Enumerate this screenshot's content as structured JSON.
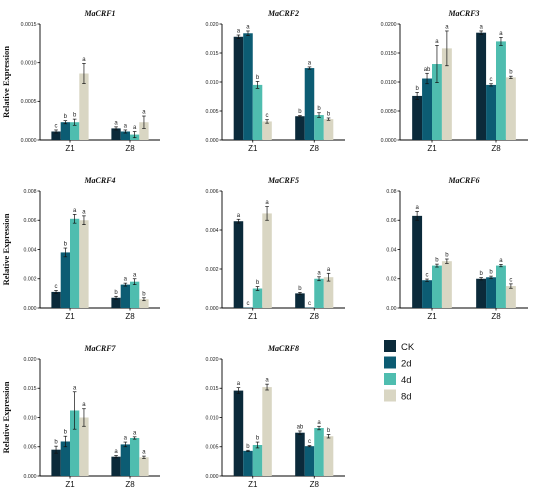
{
  "colors": {
    "CK": "#0b2a3a",
    "2d": "#0c5c73",
    "4d": "#4fbdaf",
    "8d": "#d9d6c3"
  },
  "legend": [
    "CK",
    "2d",
    "4d",
    "8d"
  ],
  "chart_data": [
    {
      "type": "bar",
      "title": "MaCRF1",
      "ylabel": "Relative Expression",
      "categories": [
        "Z1",
        "Z8"
      ],
      "ylim": [
        0,
        0.0015
      ],
      "yticks": [
        "0.0000",
        "0.0005",
        "0.0010",
        "0.0015"
      ],
      "series": [
        {
          "name": "CK",
          "values": [
            0.00011,
            0.00015
          ],
          "errors": [
            2e-05,
            2e-05
          ],
          "letters": [
            "c",
            "a"
          ]
        },
        {
          "name": "2d",
          "values": [
            0.00023,
            0.00011
          ],
          "errors": [
            2e-05,
            2e-05
          ],
          "letters": [
            "b",
            "a"
          ]
        },
        {
          "name": "4d",
          "values": [
            0.00023,
            7e-05
          ],
          "errors": [
            4e-05,
            4e-05
          ],
          "letters": [
            "b",
            "a"
          ]
        },
        {
          "name": "8d",
          "values": [
            0.00086,
            0.00023
          ],
          "errors": [
            0.00013,
            8e-05
          ],
          "letters": [
            "a",
            "a"
          ]
        }
      ]
    },
    {
      "type": "bar",
      "title": "MaCRF2",
      "ylabel": "",
      "categories": [
        "Z1",
        "Z8"
      ],
      "ylim": [
        0,
        0.02
      ],
      "yticks": [
        "0.000",
        "0.005",
        "0.010",
        "0.015",
        "0.020"
      ],
      "series": [
        {
          "name": "CK",
          "values": [
            0.0178,
            0.0041
          ],
          "errors": [
            0.0003,
            0.0001
          ],
          "letters": [
            "a",
            "b"
          ]
        },
        {
          "name": "2d",
          "values": [
            0.0184,
            0.0124
          ],
          "errors": [
            0.0004,
            0.0002
          ],
          "letters": [
            "a",
            "a"
          ]
        },
        {
          "name": "4d",
          "values": [
            0.0095,
            0.0043
          ],
          "errors": [
            0.0006,
            0.0004
          ],
          "letters": [
            "b",
            "b"
          ]
        },
        {
          "name": "8d",
          "values": [
            0.0032,
            0.0036
          ],
          "errors": [
            0.0003,
            0.0002
          ],
          "letters": [
            "c",
            "b"
          ]
        }
      ]
    },
    {
      "type": "bar",
      "title": "MaCRF3",
      "ylabel": "",
      "categories": [
        "Z1",
        "Z8"
      ],
      "ylim": [
        0,
        0.02
      ],
      "yticks": [
        "0.0000",
        "0.0050",
        "0.0100",
        "0.0150",
        "0.0200"
      ],
      "series": [
        {
          "name": "CK",
          "values": [
            0.0076,
            0.0185
          ],
          "errors": [
            0.0006,
            0.0003
          ],
          "letters": [
            "b",
            "a"
          ]
        },
        {
          "name": "2d",
          "values": [
            0.0106,
            0.0095
          ],
          "errors": [
            0.0009,
            0.0002
          ],
          "letters": [
            "ab",
            "c"
          ]
        },
        {
          "name": "4d",
          "values": [
            0.0131,
            0.017
          ],
          "errors": [
            0.0032,
            0.0007
          ],
          "letters": [
            "a",
            "a"
          ]
        },
        {
          "name": "8d",
          "values": [
            0.0158,
            0.0108
          ],
          "errors": [
            0.003,
            0.0002
          ],
          "letters": [
            "a",
            "b"
          ]
        }
      ]
    },
    {
      "type": "bar",
      "title": "MaCRF4",
      "ylabel": "Relative Expression",
      "categories": [
        "Z1",
        "Z8"
      ],
      "ylim": [
        0,
        0.008
      ],
      "yticks": [
        "0.000",
        "0.002",
        "0.004",
        "0.006",
        "0.008"
      ],
      "series": [
        {
          "name": "CK",
          "values": [
            0.0011,
            0.0007
          ],
          "errors": [
            0.0001,
            0.0001
          ],
          "letters": [
            "c",
            "b"
          ]
        },
        {
          "name": "2d",
          "values": [
            0.0038,
            0.0016
          ],
          "errors": [
            0.0003,
            0.0001
          ],
          "letters": [
            "b",
            "a"
          ]
        },
        {
          "name": "4d",
          "values": [
            0.0061,
            0.0018
          ],
          "errors": [
            0.0003,
            0.0002
          ],
          "letters": [
            "a",
            "a"
          ]
        },
        {
          "name": "8d",
          "values": [
            0.006,
            0.0006
          ],
          "errors": [
            0.0003,
            0.0001
          ],
          "letters": [
            "a",
            "b"
          ]
        }
      ]
    },
    {
      "type": "bar",
      "title": "MaCRF5",
      "ylabel": "",
      "categories": [
        "Z1",
        "Z8"
      ],
      "ylim": [
        0,
        0.006
      ],
      "yticks": [
        "0.000",
        "0.002",
        "0.004",
        "0.006"
      ],
      "series": [
        {
          "name": "CK",
          "values": [
            0.00445,
            0.00075
          ],
          "errors": [
            0.0001,
            5e-05
          ],
          "letters": [
            "a",
            "b"
          ]
        },
        {
          "name": "2d",
          "values": [
            2e-05,
            2e-05
          ],
          "errors": [
            0,
            0
          ],
          "letters": [
            "c",
            "c"
          ]
        },
        {
          "name": "4d",
          "values": [
            0.001,
            0.0015
          ],
          "errors": [
            0.0001,
            0.0001
          ],
          "letters": [
            "b",
            "a"
          ]
        },
        {
          "name": "8d",
          "values": [
            0.00485,
            0.00158
          ],
          "errors": [
            0.00035,
            0.0002
          ],
          "letters": [
            "a",
            "a"
          ]
        }
      ]
    },
    {
      "type": "bar",
      "title": "MaCRF6",
      "ylabel": "",
      "categories": [
        "Z1",
        "Z8"
      ],
      "ylim": [
        0,
        0.08
      ],
      "yticks": [
        "0.00",
        "0.02",
        "0.04",
        "0.06",
        "0.08"
      ],
      "series": [
        {
          "name": "CK",
          "values": [
            0.063,
            0.02
          ],
          "errors": [
            0.003,
            0.0008
          ],
          "letters": [
            "a",
            "b"
          ]
        },
        {
          "name": "2d",
          "values": [
            0.019,
            0.021
          ],
          "errors": [
            0.0008,
            0.0008
          ],
          "letters": [
            "c",
            "b"
          ]
        },
        {
          "name": "4d",
          "values": [
            0.029,
            0.029
          ],
          "errors": [
            0.001,
            0.0008
          ],
          "letters": [
            "b",
            "a"
          ]
        },
        {
          "name": "8d",
          "values": [
            0.032,
            0.015
          ],
          "errors": [
            0.0015,
            0.0015
          ],
          "letters": [
            "b",
            "c"
          ]
        }
      ]
    },
    {
      "type": "bar",
      "title": "MaCRF7",
      "ylabel": "Relative Expression",
      "categories": [
        "Z1",
        "Z8"
      ],
      "ylim": [
        0,
        0.02
      ],
      "yticks": [
        "0.000",
        "0.005",
        "0.010",
        "0.015",
        "0.020"
      ],
      "series": [
        {
          "name": "CK",
          "values": [
            0.0045,
            0.0033
          ],
          "errors": [
            0.0006,
            0.0002
          ],
          "letters": [
            "b",
            "a"
          ]
        },
        {
          "name": "2d",
          "values": [
            0.0059,
            0.0054
          ],
          "errors": [
            0.0009,
            0.0004
          ],
          "letters": [
            "b",
            "a"
          ]
        },
        {
          "name": "4d",
          "values": [
            0.0112,
            0.0065
          ],
          "errors": [
            0.0032,
            0.0002
          ],
          "letters": [
            "a",
            "a"
          ]
        },
        {
          "name": "8d",
          "values": [
            0.01,
            0.0032
          ],
          "errors": [
            0.0015,
            0.0002
          ],
          "letters": [
            "a",
            "a"
          ]
        }
      ]
    },
    {
      "type": "bar",
      "title": "MaCRF8",
      "ylabel": "",
      "categories": [
        "Z1",
        "Z8"
      ],
      "ylim": [
        0,
        0.02
      ],
      "yticks": [
        "0.000",
        "0.005",
        "0.010",
        "0.015",
        "0.020"
      ],
      "series": [
        {
          "name": "CK",
          "values": [
            0.0146,
            0.0074
          ],
          "errors": [
            0.0005,
            0.0003
          ],
          "letters": [
            "a",
            "ab"
          ]
        },
        {
          "name": "2d",
          "values": [
            0.0043,
            0.0051
          ],
          "errors": [
            0.0001,
            0.0001
          ],
          "letters": [
            "b",
            "c"
          ]
        },
        {
          "name": "4d",
          "values": [
            0.0053,
            0.0082
          ],
          "errors": [
            0.0005,
            0.0003
          ],
          "letters": [
            "b",
            "a"
          ]
        },
        {
          "name": "8d",
          "values": [
            0.0152,
            0.0068
          ],
          "errors": [
            0.0005,
            0.0003
          ],
          "letters": [
            "a",
            "b"
          ]
        }
      ]
    }
  ]
}
